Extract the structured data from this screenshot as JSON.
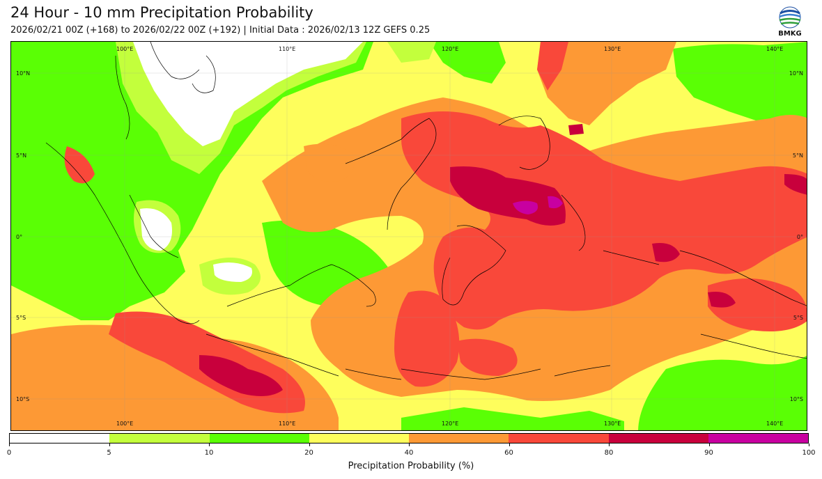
{
  "header": {
    "title": "24 Hour - 10 mm Precipitation Probability",
    "subtitle": "2026/02/21 00Z (+168) to 2026/02/22 00Z (+192) | Initial Data : 2026/02/13 12Z GEFS 0.25"
  },
  "logo": {
    "text": "BMKG",
    "icon": "bmkg-logo-icon"
  },
  "map": {
    "lon_labels": [
      "100°E",
      "110°E",
      "120°E",
      "130°E",
      "140°E"
    ],
    "lat_labels": [
      "10°N",
      "5°N",
      "0°",
      "5°S",
      "10°S"
    ]
  },
  "colorbar": {
    "bins": [
      {
        "from": 0,
        "to": 5,
        "color": "#ffffff"
      },
      {
        "from": 5,
        "to": 10,
        "color": "#c3ff3c"
      },
      {
        "from": 10,
        "to": 20,
        "color": "#5aff05"
      },
      {
        "from": 20,
        "to": 40,
        "color": "#fefe5c"
      },
      {
        "from": 40,
        "to": 60,
        "color": "#fd9935"
      },
      {
        "from": 60,
        "to": 80,
        "color": "#f9483a"
      },
      {
        "from": 80,
        "to": 90,
        "color": "#c8003c"
      },
      {
        "from": 90,
        "to": 100,
        "color": "#c800a0"
      }
    ],
    "ticks": [
      "0",
      "5",
      "10",
      "20",
      "40",
      "60",
      "80",
      "90",
      "100"
    ],
    "label": "Precipitation Probability (%)"
  }
}
